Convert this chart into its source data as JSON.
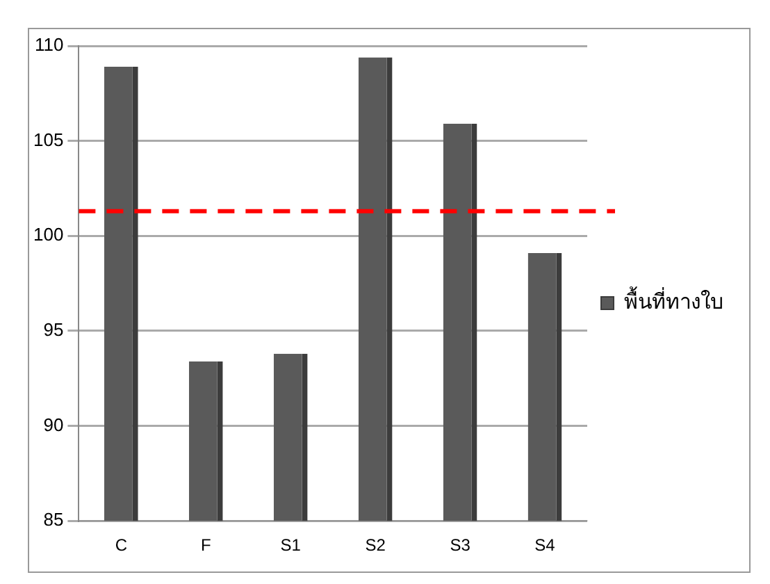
{
  "chart_data": {
    "type": "bar",
    "categories": [
      "C",
      "F",
      "S1",
      "S2",
      "S3",
      "S4"
    ],
    "series": [
      {
        "name": "พื้นที่ทางใบ",
        "color": "#5a5a5a",
        "values": [
          108.9,
          93.4,
          93.8,
          109.4,
          105.9,
          99.1
        ]
      }
    ],
    "ylim": [
      85,
      110
    ],
    "yticks": [
      85,
      90,
      95,
      100,
      105,
      110
    ],
    "grid": "y",
    "legend": "right",
    "ref_lines": [
      {
        "axis": "y",
        "value": 101.3,
        "color": "#ff0000",
        "line_style": "dashed"
      }
    ]
  }
}
